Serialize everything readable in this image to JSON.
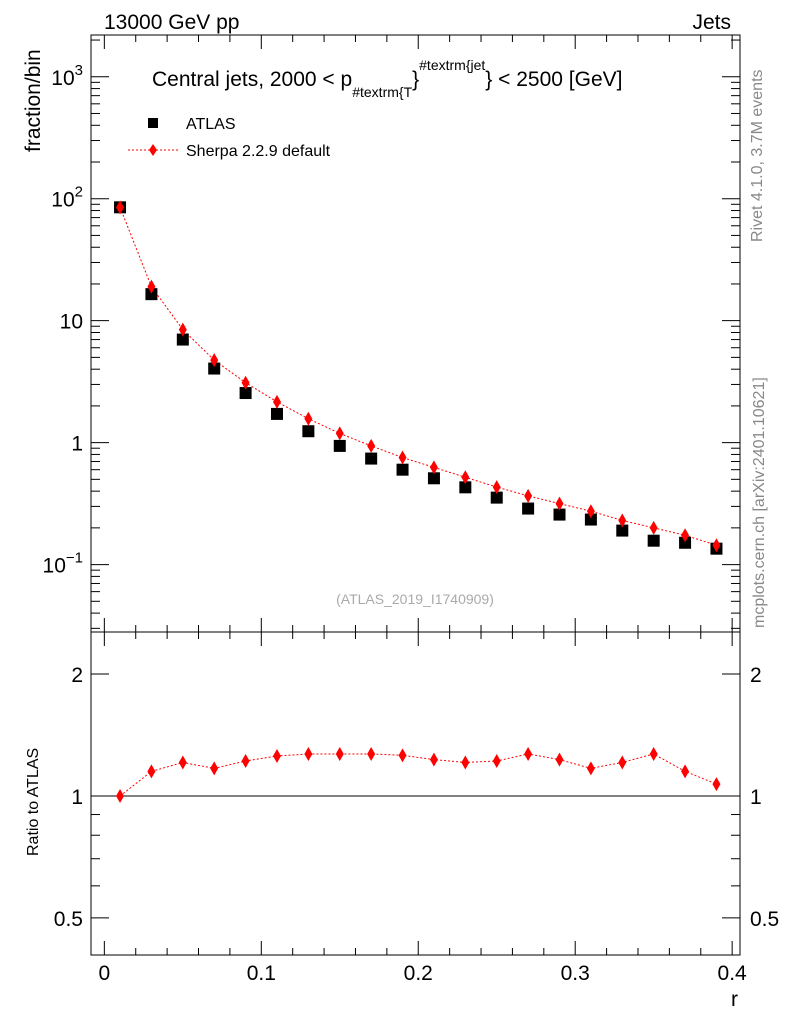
{
  "header": {
    "left": "13000 GeV pp",
    "right": "Jets"
  },
  "side": {
    "rivet": "Rivet 4.1.0,  3.7M events",
    "mcplots": "mcplots.cern.ch [arXiv:2401.10621]"
  },
  "analysis_id": "(ATLAS_2019_I1740909)",
  "colors": {
    "data": "#000000",
    "mc": "#ff0000"
  },
  "chart_data": [
    {
      "type": "scatter",
      "title_parts": {
        "main": "Central jets, 2000 < p",
        "sub": "#textrm{T",
        "close1": "}",
        "sup": "#textrm{jet",
        "close2": "} < 2500 [GeV]"
      },
      "ylabel": "fraction/bin",
      "yscale": "log",
      "ylim": [
        0.028,
        2200
      ],
      "yticks": [
        {
          "v": 1000,
          "base": "10",
          "exp": "3"
        },
        {
          "v": 100,
          "base": "10",
          "exp": "2"
        },
        {
          "v": 10,
          "label": "10"
        },
        {
          "v": 1,
          "label": "1"
        },
        {
          "v": 0.1,
          "base": "10",
          "exp": "−1"
        }
      ],
      "legend": [
        {
          "label": "ATLAS"
        },
        {
          "label": "Sherpa 2.2.9 default"
        }
      ],
      "legend_placement": "top-left",
      "x": [
        0.01,
        0.03,
        0.05,
        0.07,
        0.09,
        0.11,
        0.13,
        0.15,
        0.17,
        0.19,
        0.21,
        0.23,
        0.25,
        0.27,
        0.29,
        0.31,
        0.33,
        0.35,
        0.37,
        0.39
      ],
      "series": [
        {
          "name": "ATLAS",
          "values": [
            85,
            16.5,
            7.0,
            4.05,
            2.55,
            1.72,
            1.24,
            0.94,
            0.74,
            0.6,
            0.51,
            0.43,
            0.354,
            0.288,
            0.257,
            0.234,
            0.19,
            0.157,
            0.151,
            0.135
          ]
        },
        {
          "name": "Sherpa 2.2.9 default",
          "values": [
            85,
            19.0,
            8.45,
            4.75,
            3.1,
            2.16,
            1.57,
            1.19,
            0.94,
            0.755,
            0.627,
            0.52,
            0.432,
            0.366,
            0.316,
            0.274,
            0.23,
            0.2,
            0.174,
            0.144
          ]
        }
      ]
    },
    {
      "type": "line",
      "ylabel": "Ratio to ATLAS",
      "xlabel": "r",
      "yscale": "log",
      "ylim": [
        0.405,
        2.54
      ],
      "xlim": [
        -0.0085,
        0.405
      ],
      "yticks": [
        {
          "v": 2,
          "label": "2"
        },
        {
          "v": 1,
          "label": "1"
        },
        {
          "v": 0.5,
          "label": "0.5"
        }
      ],
      "xticks": [
        {
          "v": 0,
          "label": "0"
        },
        {
          "v": 0.1,
          "label": "0.1"
        },
        {
          "v": 0.2,
          "label": "0.2"
        },
        {
          "v": 0.3,
          "label": "0.3"
        },
        {
          "v": 0.4,
          "label": "0.4"
        }
      ],
      "ratio": [
        1.0,
        1.15,
        1.21,
        1.17,
        1.22,
        1.255,
        1.27,
        1.27,
        1.27,
        1.26,
        1.23,
        1.21,
        1.22,
        1.27,
        1.23,
        1.17,
        1.21,
        1.27,
        1.15,
        1.07
      ]
    }
  ]
}
